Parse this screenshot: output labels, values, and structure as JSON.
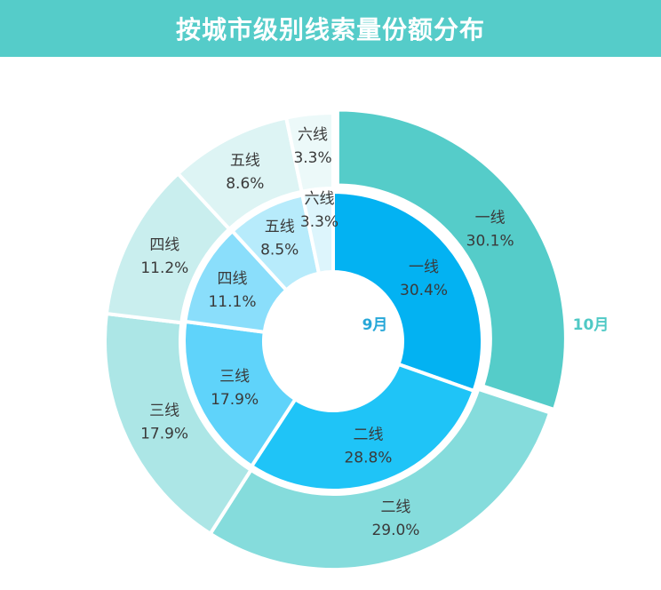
{
  "header": {
    "title": "按城市级别线索量份额分布"
  },
  "colors": {
    "header_bg": "#55CCC9",
    "outer_label": "#4FC9C5",
    "inner_label": "#26A7D8",
    "text": "#3A3A3A"
  },
  "chart_data": {
    "type": "pie",
    "variant": "nested-donut",
    "title": "按城市级别线索量份额分布",
    "categories": [
      "一线",
      "二线",
      "三线",
      "四线",
      "五线",
      "六线"
    ],
    "series": [
      {
        "name": "9月",
        "ring": "inner",
        "values": [
          30.4,
          28.8,
          17.9,
          11.1,
          8.5,
          3.3
        ],
        "labels": [
          "30.4%",
          "28.8%",
          "17.9%",
          "11.1%",
          "8.5%",
          "3.3%"
        ],
        "colors": [
          "#03B2F2",
          "#1FC4F7",
          "#5FD3FA",
          "#8ADEFB",
          "#B7EBFB",
          "#DDF5FC"
        ]
      },
      {
        "name": "10月",
        "ring": "outer",
        "values": [
          30.1,
          29.0,
          17.9,
          11.2,
          8.6,
          3.3
        ],
        "labels": [
          "30.1%",
          "29.0%",
          "17.9%",
          "11.2%",
          "8.6%",
          "3.3%"
        ],
        "colors": [
          "#55CCC9",
          "#85DCDC",
          "#ACE6E6",
          "#C9EEEE",
          "#DDF4F4",
          "#ECF9F9"
        ]
      }
    ]
  }
}
